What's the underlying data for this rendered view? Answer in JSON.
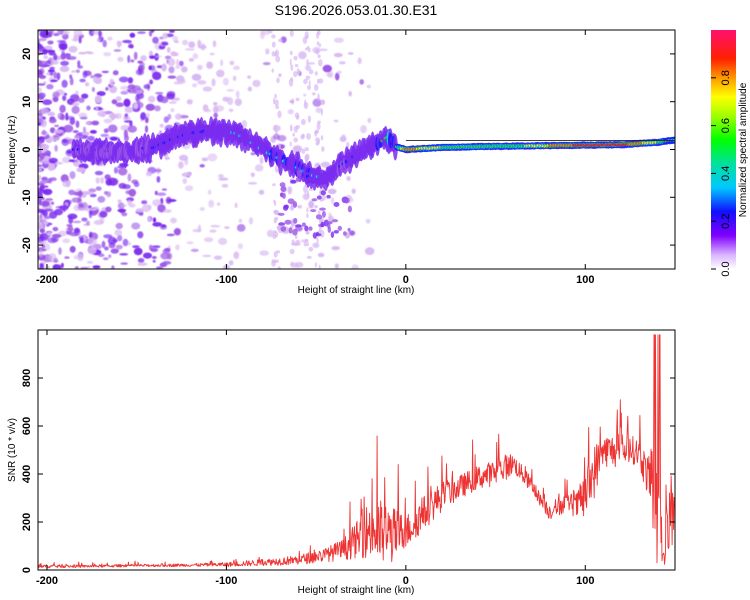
{
  "title": "S196.2026.053.01.30.E31",
  "chart_data": [
    {
      "type": "heatmap",
      "xlabel": "Height of straight line (km)",
      "ylabel": "Frequency (Hz)",
      "xlim": [
        -205,
        150
      ],
      "ylim": [
        -25,
        25
      ],
      "x_ticks": [
        -200,
        -100,
        0,
        100
      ],
      "x_tick_labels": [
        "-200",
        "-100",
        "0",
        "100"
      ],
      "y_ticks": [
        -20,
        -10,
        0,
        10,
        20
      ],
      "y_tick_labels": [
        "-20",
        "-10",
        "0",
        "10",
        "20"
      ],
      "colorbar": {
        "label": "Normalized spectral amplitude",
        "range": [
          0,
          1
        ],
        "ticks": [
          0,
          0.2,
          0.4,
          0.6,
          0.8
        ],
        "tick_labels": [
          "0.0",
          "0.2",
          "0.4",
          "0.6",
          "0.8"
        ],
        "colormap": "rainbow (white-violet-blue-cyan-green-yellow-orange-red-pink)"
      },
      "ridge": {
        "description": "dominant frequency ridge versus height",
        "x": [
          -180,
          -160,
          -140,
          -125,
          -110,
          -95,
          -80,
          -65,
          -55,
          -45,
          -35,
          -25,
          -15,
          -10,
          -5,
          0,
          20,
          40,
          60,
          80,
          100,
          120,
          140,
          150
        ],
        "y": [
          0,
          -0.5,
          0.5,
          3,
          4,
          3.5,
          0,
          -3,
          -5,
          -6,
          -3,
          -0.5,
          1.5,
          2.5,
          0.5,
          0,
          0.4,
          0.6,
          0.7,
          0.8,
          0.9,
          1.0,
          1.5,
          2
        ],
        "amplitude": [
          0.3,
          0.28,
          0.32,
          0.35,
          0.38,
          0.42,
          0.42,
          0.45,
          0.45,
          0.35,
          0.3,
          0.38,
          0.45,
          0.55,
          0.5,
          0.75,
          0.6,
          0.55,
          0.55,
          0.7,
          0.85,
          0.85,
          0.6,
          0.45
        ]
      },
      "colors": {
        "violet_light": "#d8b8f2",
        "violet": "#9b55e6",
        "violet_dark": "#7a2cf0",
        "blue": "#1a1aff",
        "cyan": "#00e0e0",
        "green": "#2ed82e",
        "yellow": "#f0f000",
        "orange": "#ff8000",
        "red": "#ff1a1a"
      }
    },
    {
      "type": "line",
      "xlabel": "Height of straight line (km)",
      "ylabel": "SNR (10 * v/v)",
      "xlim": [
        -205,
        150
      ],
      "ylim": [
        0,
        1000
      ],
      "x_ticks": [
        -200,
        -100,
        0,
        100
      ],
      "x_tick_labels": [
        "-200",
        "-100",
        "0",
        "100"
      ],
      "y_ticks": [
        0,
        200,
        400,
        600,
        800
      ],
      "y_tick_labels": [
        "0",
        "200",
        "400",
        "600",
        "800"
      ],
      "color": "#ee3333",
      "envelope": {
        "x": [
          -205,
          -180,
          -150,
          -120,
          -100,
          -80,
          -60,
          -45,
          -35,
          -25,
          -20,
          -15,
          -10,
          0,
          10,
          20,
          30,
          40,
          50,
          57,
          60,
          70,
          75,
          80,
          85,
          90,
          95,
          100,
          105,
          110,
          120,
          125,
          130,
          135,
          140,
          145,
          150
        ],
        "base": [
          15,
          15,
          18,
          20,
          22,
          30,
          40,
          60,
          80,
          130,
          160,
          140,
          130,
          150,
          230,
          300,
          340,
          380,
          400,
          430,
          440,
          350,
          290,
          240,
          260,
          280,
          260,
          300,
          400,
          490,
          490,
          500,
          480,
          380,
          180,
          120,
          300
        ],
        "spike": [
          15,
          12,
          12,
          14,
          20,
          30,
          45,
          65,
          100,
          190,
          290,
          320,
          300,
          160,
          160,
          140,
          110,
          110,
          120,
          120,
          90,
          70,
          60,
          80,
          90,
          80,
          120,
          230,
          250,
          150,
          160,
          130,
          130,
          200,
          500,
          350,
          400
        ]
      }
    }
  ]
}
